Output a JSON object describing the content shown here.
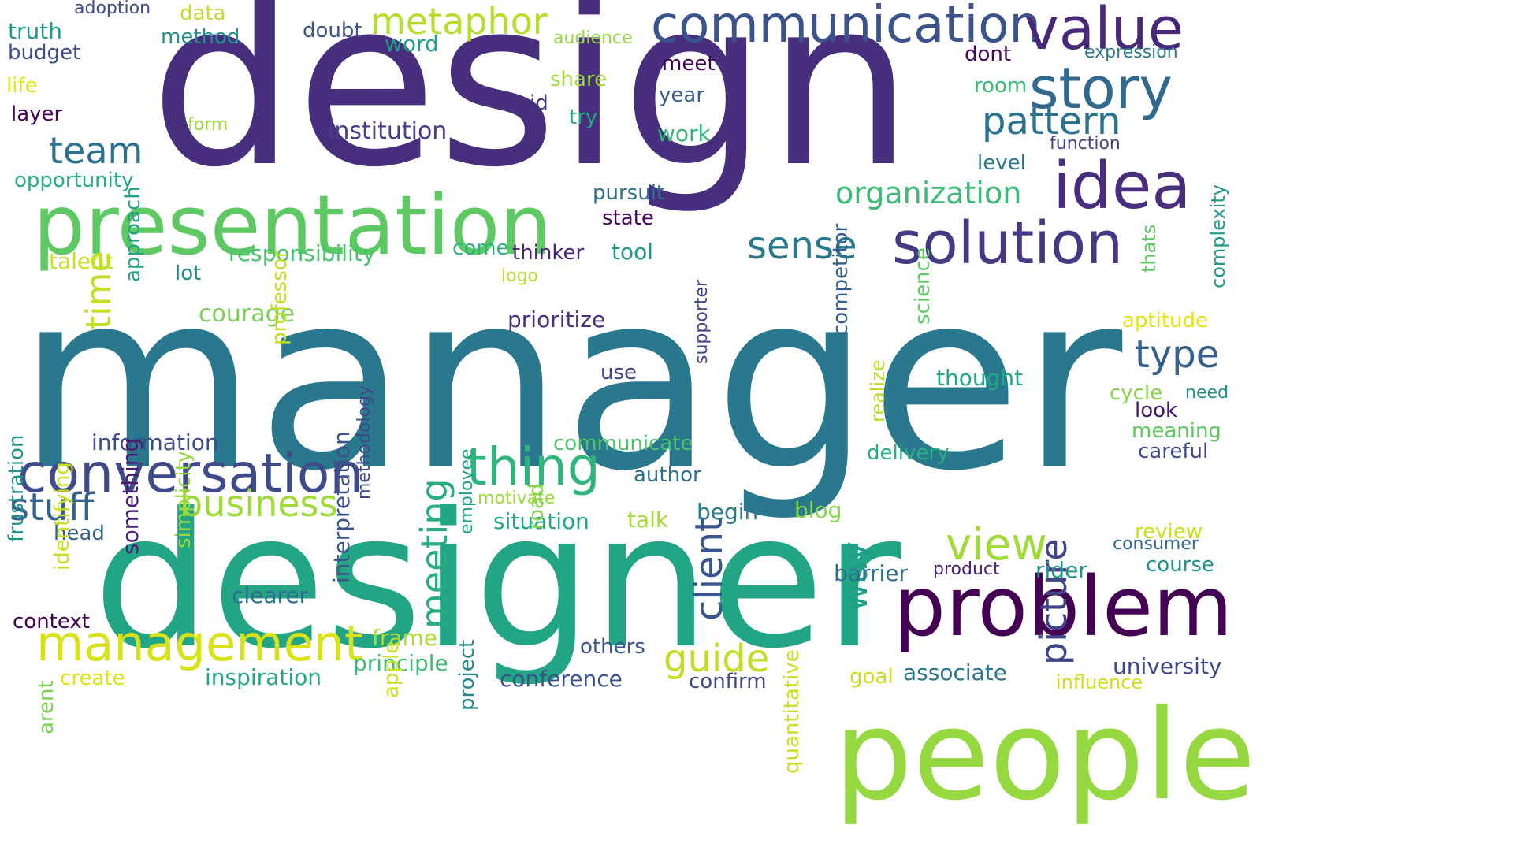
{
  "word_cloud": {
    "background": "#ffffff",
    "words": [
      {
        "text": "design",
        "color": "#472f7d"
      },
      {
        "text": "manager",
        "color": "#2a788e"
      },
      {
        "text": "designer",
        "color": "#21a585"
      },
      {
        "text": "presentation",
        "color": "#5ec962"
      },
      {
        "text": "people",
        "color": "#95d840"
      },
      {
        "text": "problem",
        "color": "#440154"
      },
      {
        "text": "communication",
        "color": "#3b528b"
      },
      {
        "text": "value",
        "color": "#482878"
      },
      {
        "text": "story",
        "color": "#31688e"
      },
      {
        "text": "idea",
        "color": "#472d7b"
      },
      {
        "text": "solution",
        "color": "#443983"
      },
      {
        "text": "conversation",
        "color": "#3e4a89"
      },
      {
        "text": "thing",
        "color": "#2fb47c"
      },
      {
        "text": "management",
        "color": "#d8e219"
      },
      {
        "text": "pattern",
        "color": "#2c728e"
      },
      {
        "text": "time",
        "color": "#c2df23"
      },
      {
        "text": "team",
        "color": "#2c728e"
      },
      {
        "text": "metaphor",
        "color": "#b5de2b"
      },
      {
        "text": "meeting",
        "color": "#27ad81"
      },
      {
        "text": "client",
        "color": "#39568c"
      },
      {
        "text": "picture",
        "color": "#414487"
      },
      {
        "text": "view",
        "color": "#a0da39"
      },
      {
        "text": "business",
        "color": "#a0da39"
      },
      {
        "text": "guide",
        "color": "#bddf26"
      },
      {
        "text": "stuff",
        "color": "#33638d"
      },
      {
        "text": "sense",
        "color": "#2a788e"
      },
      {
        "text": "type",
        "color": "#355f8d"
      },
      {
        "text": "way",
        "color": "#1f9e89"
      },
      {
        "text": "organization",
        "color": "#3bbb75"
      },
      {
        "text": "institution",
        "color": "#433e85"
      },
      {
        "text": "word",
        "color": "#1f9e89"
      },
      {
        "text": "responsibility",
        "color": "#4ac16d"
      },
      {
        "text": "opportunity",
        "color": "#25ac82"
      },
      {
        "text": "courage",
        "color": "#7ad151"
      },
      {
        "text": "prioritize",
        "color": "#46327e"
      },
      {
        "text": "information",
        "color": "#3d4e8a"
      },
      {
        "text": "communicate",
        "color": "#4ec36b"
      },
      {
        "text": "situation",
        "color": "#22a785"
      },
      {
        "text": "context",
        "color": "#440154"
      },
      {
        "text": "clearer",
        "color": "#2d708e"
      },
      {
        "text": "frame",
        "color": "#addc30"
      },
      {
        "text": "principle",
        "color": "#3dbc74"
      },
      {
        "text": "inspiration",
        "color": "#22a884"
      },
      {
        "text": "conference",
        "color": "#3b528b"
      },
      {
        "text": "confirm",
        "color": "#3f4788"
      },
      {
        "text": "associate",
        "color": "#2a768e"
      },
      {
        "text": "influence",
        "color": "#d0e11c"
      },
      {
        "text": "goal",
        "color": "#c8e020"
      },
      {
        "text": "university",
        "color": "#3e4989"
      },
      {
        "text": "course",
        "color": "#21918c"
      },
      {
        "text": "consumer",
        "color": "#31688e"
      },
      {
        "text": "review",
        "color": "#c8e020"
      },
      {
        "text": "rider",
        "color": "#1f968b"
      },
      {
        "text": "product",
        "color": "#482173"
      },
      {
        "text": "barrier",
        "color": "#2c728e"
      },
      {
        "text": "delivery",
        "color": "#29af7f"
      },
      {
        "text": "careful",
        "color": "#3e4a89"
      },
      {
        "text": "meaning",
        "color": "#5ec962"
      },
      {
        "text": "look",
        "color": "#481467"
      },
      {
        "text": "cycle",
        "color": "#86d549"
      },
      {
        "text": "need",
        "color": "#1f948c"
      },
      {
        "text": "aptitude",
        "color": "#e5e419"
      },
      {
        "text": "thought",
        "color": "#22a785"
      },
      {
        "text": "blog",
        "color": "#86d549"
      },
      {
        "text": "begin",
        "color": "#287c8e"
      },
      {
        "text": "talk",
        "color": "#a5db36"
      },
      {
        "text": "author",
        "color": "#2c728e"
      },
      {
        "text": "motivate",
        "color": "#9bd93c"
      },
      {
        "text": "use",
        "color": "#414487"
      },
      {
        "text": "thinker",
        "color": "#482475"
      },
      {
        "text": "tool",
        "color": "#1f988b"
      },
      {
        "text": "come",
        "color": "#2db27d"
      },
      {
        "text": "logo",
        "color": "#b5de2b"
      },
      {
        "text": "state",
        "color": "#46085c"
      },
      {
        "text": "pursuit",
        "color": "#2e6e8e"
      },
      {
        "text": "work",
        "color": "#35b779"
      },
      {
        "text": "year",
        "color": "#355f8d"
      },
      {
        "text": "meet",
        "color": "#440154"
      },
      {
        "text": "try",
        "color": "#22a884"
      },
      {
        "text": "id",
        "color": "#46337e"
      },
      {
        "text": "share",
        "color": "#a0da39"
      },
      {
        "text": "audience",
        "color": "#93d741"
      },
      {
        "text": "doubt",
        "color": "#3b528b"
      },
      {
        "text": "data",
        "color": "#bddf26"
      },
      {
        "text": "adoption",
        "color": "#3e4c8a"
      },
      {
        "text": "truth",
        "color": "#1e9c89"
      },
      {
        "text": "budget",
        "color": "#3d4e8a"
      },
      {
        "text": "method",
        "color": "#21918c"
      },
      {
        "text": "life",
        "color": "#e5e419"
      },
      {
        "text": "layer",
        "color": "#440154"
      },
      {
        "text": "form",
        "color": "#9bd93c"
      },
      {
        "text": "talent",
        "color": "#c5e021"
      },
      {
        "text": "lot",
        "color": "#228b8d"
      },
      {
        "text": "head",
        "color": "#33638d"
      },
      {
        "text": "create",
        "color": "#dde318"
      },
      {
        "text": "others",
        "color": "#3b528b"
      },
      {
        "text": "dont",
        "color": "#46085c"
      },
      {
        "text": "room",
        "color": "#3bbb75"
      },
      {
        "text": "level",
        "color": "#2a768e"
      },
      {
        "text": "function",
        "color": "#3f4788"
      },
      {
        "text": "expression",
        "color": "#2a788e"
      },
      {
        "text": "approach",
        "color": "#20a386"
      },
      {
        "text": "professor",
        "color": "#c2df23"
      },
      {
        "text": "competitor",
        "color": "#355f8d"
      },
      {
        "text": "science",
        "color": "#5ec962"
      },
      {
        "text": "supporter",
        "color": "#3f4788"
      },
      {
        "text": "thats",
        "color": "#5ec962"
      },
      {
        "text": "complexity",
        "color": "#1f9a8a"
      },
      {
        "text": "frustration",
        "color": "#21918c"
      },
      {
        "text": "identifying",
        "color": "#c8e020"
      },
      {
        "text": "something",
        "color": "#481f70"
      },
      {
        "text": "simplicity",
        "color": "#95d840"
      },
      {
        "text": "interpretation",
        "color": "#3b528b"
      },
      {
        "text": "methodology",
        "color": "#3e4989"
      },
      {
        "text": "employee",
        "color": "#1fa187"
      },
      {
        "text": "road",
        "color": "#86d549"
      },
      {
        "text": "realize",
        "color": "#b8de29"
      },
      {
        "text": "project",
        "color": "#23888e"
      },
      {
        "text": "apple",
        "color": "#cae11f"
      },
      {
        "text": "arent",
        "color": "#7ad151"
      },
      {
        "text": "quantitative",
        "color": "#c8e020"
      }
    ]
  }
}
